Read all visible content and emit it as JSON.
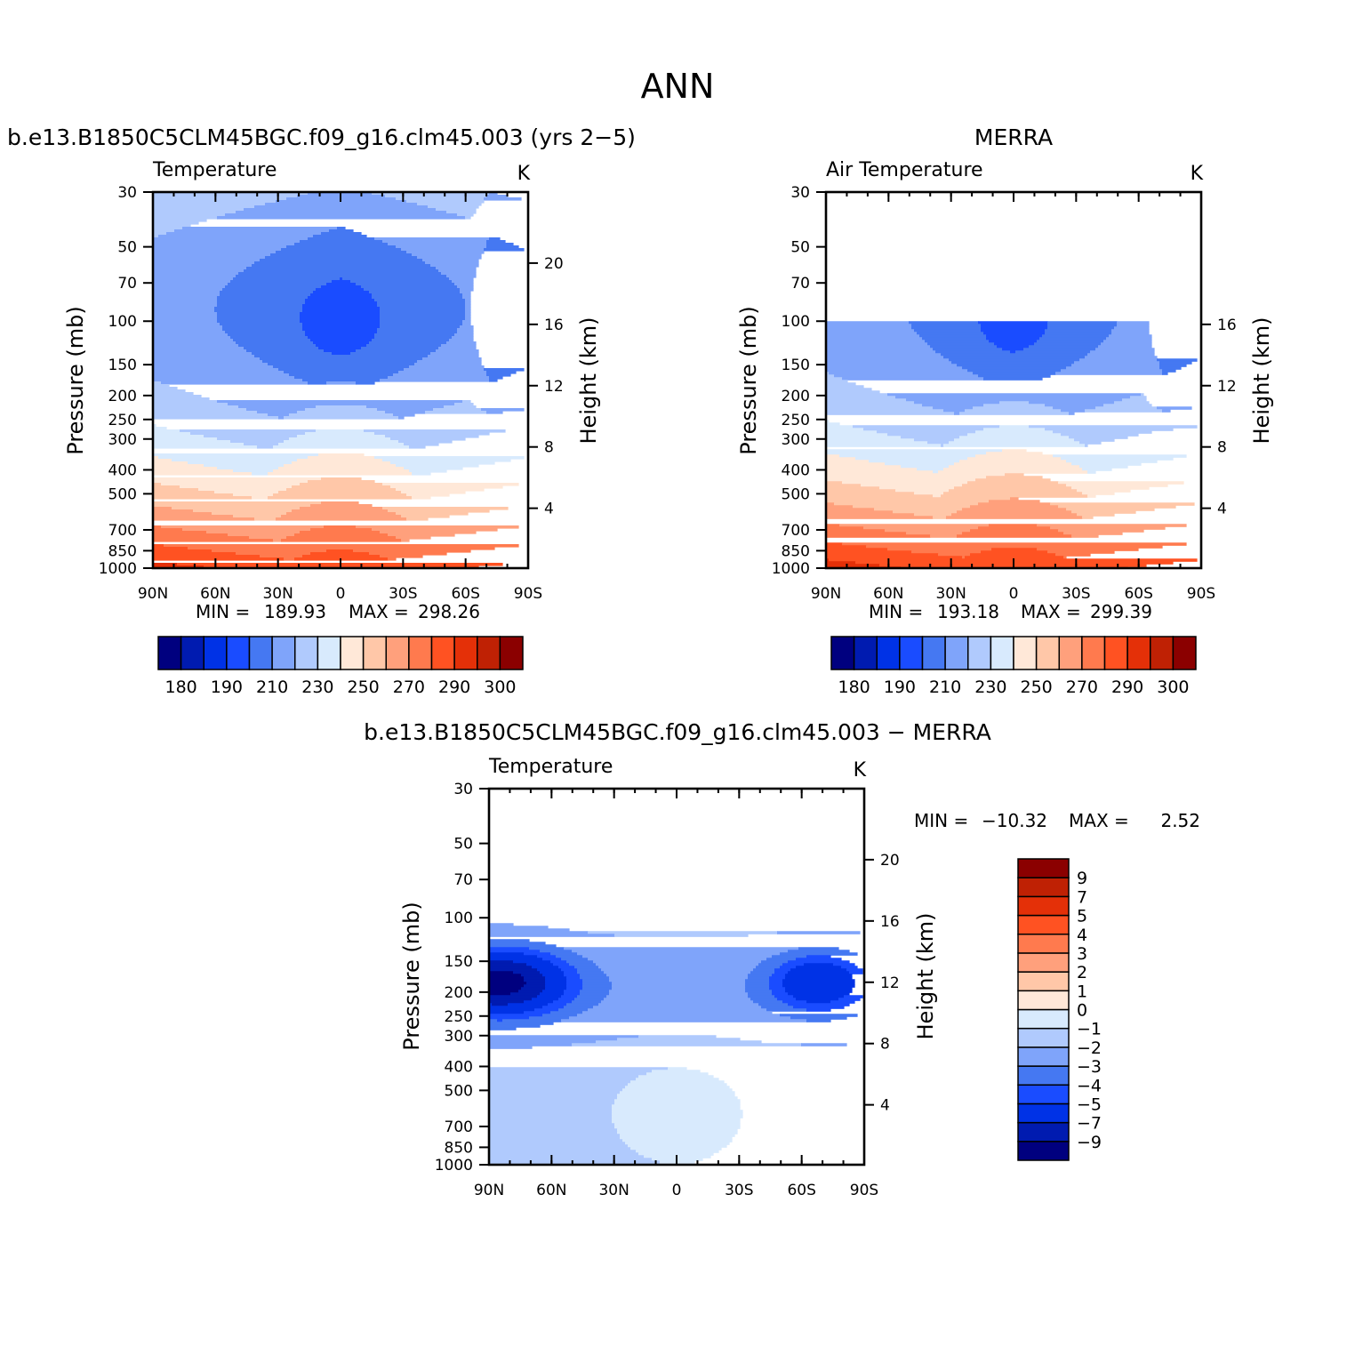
{
  "page_title": "ANN",
  "chart_data": [
    {
      "type": "contour",
      "id": "model",
      "title": "b.e13.B1850C5CLM45BGC.f09_g16.clm45.003 (yrs 2−5)",
      "variable": "Temperature",
      "units": "K",
      "xlabel": "",
      "ylabel": "Pressure (mb)",
      "right_ylabel": "Height (km)",
      "x_ticks": [
        "90N",
        "60N",
        "30N",
        "0",
        "30S",
        "60S",
        "90S"
      ],
      "y_ticks": [
        30,
        50,
        70,
        100,
        150,
        200,
        250,
        300,
        400,
        500,
        700,
        850,
        1000
      ],
      "height_ticks": [
        4,
        8,
        12,
        16,
        20
      ],
      "ylim": [
        1000,
        30
      ],
      "data_top": 30,
      "stats": {
        "min_label": "MIN =",
        "min": "189.93",
        "max_label": "MAX =",
        "max": "298.26"
      },
      "levels": [
        180,
        185,
        190,
        200,
        210,
        220,
        230,
        240,
        250,
        260,
        270,
        280,
        290,
        295,
        300
      ],
      "colorbar_labels": [
        "180",
        "190",
        "210",
        "230",
        "250",
        "270",
        "290",
        "300"
      ]
    },
    {
      "type": "contour",
      "id": "obs",
      "title": "MERRA",
      "variable": "Air Temperature",
      "units": "K",
      "xlabel": "",
      "ylabel": "Pressure (mb)",
      "right_ylabel": "Height (km)",
      "x_ticks": [
        "90N",
        "60N",
        "30N",
        "0",
        "30S",
        "60S",
        "90S"
      ],
      "y_ticks": [
        30,
        50,
        70,
        100,
        150,
        200,
        250,
        300,
        400,
        500,
        700,
        850,
        1000
      ],
      "height_ticks": [
        4,
        8,
        12,
        16
      ],
      "ylim": [
        1000,
        30
      ],
      "data_top": 100,
      "stats": {
        "min_label": "MIN =",
        "min": "193.18",
        "max_label": "MAX =",
        "max": "299.39"
      },
      "levels": [
        180,
        185,
        190,
        200,
        210,
        220,
        230,
        240,
        250,
        260,
        270,
        280,
        290,
        295,
        300
      ],
      "colorbar_labels": [
        "180",
        "190",
        "210",
        "230",
        "250",
        "270",
        "290",
        "300"
      ]
    },
    {
      "type": "contour",
      "id": "diff",
      "title": "b.e13.B1850C5CLM45BGC.f09_g16.clm45.003 − MERRA",
      "variable": "Temperature",
      "units": "K",
      "xlabel": "",
      "ylabel": "Pressure (mb)",
      "right_ylabel": "Height (km)",
      "x_ticks": [
        "90N",
        "60N",
        "30N",
        "0",
        "30S",
        "60S",
        "90S"
      ],
      "y_ticks": [
        30,
        50,
        70,
        100,
        150,
        200,
        250,
        300,
        400,
        500,
        700,
        850,
        1000
      ],
      "height_ticks": [
        4,
        8,
        12,
        16,
        20
      ],
      "ylim": [
        1000,
        30
      ],
      "data_top": 100,
      "stats": {
        "min_label": "MIN =",
        "min": "−10.32",
        "max_label": "MAX =",
        "max": "2.52"
      },
      "levels": [
        -9,
        -7,
        -5,
        -4,
        -3,
        -2,
        -1,
        0,
        1,
        2,
        3,
        4,
        5,
        7,
        9
      ],
      "colorbar_labels": [
        "−9",
        "−7",
        "−5",
        "−4",
        "−3",
        "−2",
        "−1",
        "0",
        "1",
        "2",
        "3",
        "4",
        "5",
        "7",
        "9"
      ]
    }
  ],
  "colors": {
    "palette": [
      "#00007f",
      "#001bb0",
      "#0032e6",
      "#1a4cff",
      "#4578f2",
      "#7fa4fa",
      "#b0cafd",
      "#d8eafd",
      "#ffe8d8",
      "#ffc7a8",
      "#ffa07c",
      "#ff7a4e",
      "#ff5222",
      "#e43008",
      "#bf2104",
      "#8b0000"
    ],
    "no_data": "#ffffff"
  }
}
